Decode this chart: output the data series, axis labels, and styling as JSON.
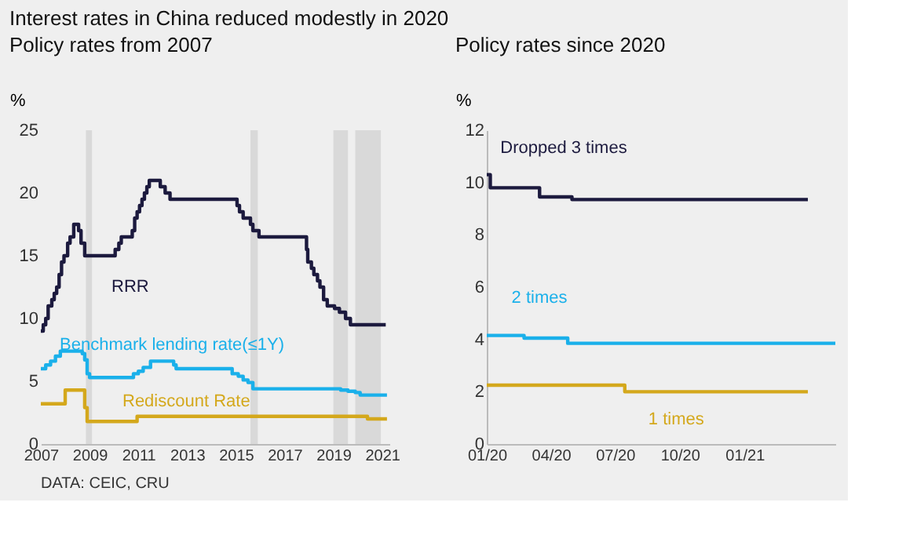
{
  "chart_data": [
    {
      "type": "step",
      "title": "Policy rates from 2007",
      "ylabel": "%",
      "annotations": [
        "Interest rates in China reduced modestly in 2020",
        "DATA: CEIC, CRU"
      ],
      "xlim": [
        2007,
        2021.3
      ],
      "xticks": [
        2007,
        2009,
        2011,
        2013,
        2015,
        2017,
        2019,
        2021
      ],
      "ylim": [
        0,
        25
      ],
      "yticks": [
        0,
        5,
        10,
        15,
        20,
        25
      ],
      "grid": false,
      "bands": [
        {
          "axis": "x",
          "from": 2008.85,
          "to": 2009.1,
          "color": "#d9d9d9"
        },
        {
          "axis": "x",
          "from": 2015.6,
          "to": 2015.9,
          "color": "#d9d9d9"
        },
        {
          "axis": "x",
          "from": 2019.0,
          "to": 2019.6,
          "color": "#d9d9d9"
        },
        {
          "axis": "x",
          "from": 2019.9,
          "to": 2020.95,
          "color": "#d9d9d9"
        }
      ],
      "series": [
        {
          "name": "RRR",
          "color": "#1c1a3e",
          "x": [
            2007.0,
            2007.1,
            2007.2,
            2007.3,
            2007.45,
            2007.55,
            2007.65,
            2007.75,
            2007.85,
            2007.95,
            2008.1,
            2008.2,
            2008.35,
            2008.55,
            2008.65,
            2008.8,
            2010.05,
            2010.2,
            2010.3,
            2010.75,
            2010.85,
            2010.95,
            2011.05,
            2011.15,
            2011.25,
            2011.35,
            2011.45,
            2011.9,
            2012.1,
            2012.3,
            2015.05,
            2015.15,
            2015.3,
            2015.6,
            2015.7,
            2015.95,
            2017.9,
            2017.95,
            2018.1,
            2018.2,
            2018.35,
            2018.45,
            2018.6,
            2018.75,
            2019.05,
            2019.25,
            2019.5,
            2019.7,
            2021.15
          ],
          "values": [
            9,
            9.5,
            10,
            11,
            11.5,
            12,
            12.5,
            13.5,
            14.5,
            15,
            16,
            16.5,
            17.5,
            17,
            16,
            15,
            15.5,
            16,
            16.5,
            17,
            18,
            18.5,
            19,
            19.5,
            20,
            20.5,
            21,
            20.5,
            20,
            19.5,
            19,
            18.5,
            18,
            17.5,
            17,
            16.5,
            15.5,
            14.5,
            14,
            13.5,
            13,
            12.5,
            11.5,
            11,
            10.8,
            10.5,
            10,
            9.5,
            9.5
          ]
        },
        {
          "name": "Benchmark lending rate(≤1Y)",
          "color": "#1ab0ea",
          "x": [
            2007.0,
            2007.2,
            2007.4,
            2007.6,
            2007.8,
            2008.7,
            2008.8,
            2008.9,
            2009.0,
            2010.8,
            2011.0,
            2011.2,
            2011.5,
            2012.45,
            2012.55,
            2014.85,
            2015.1,
            2015.3,
            2015.5,
            2015.7,
            2019.3,
            2019.6,
            2019.9,
            2020.1,
            2021.2
          ],
          "values": [
            6.0,
            6.3,
            6.6,
            7.0,
            7.4,
            7.2,
            6.7,
            5.6,
            5.3,
            5.6,
            5.8,
            6.1,
            6.6,
            6.3,
            6.0,
            5.6,
            5.4,
            5.1,
            4.9,
            4.4,
            4.3,
            4.2,
            4.1,
            3.9,
            3.9
          ]
        },
        {
          "name": "Rediscount Rate",
          "color": "#d4a81c",
          "x": [
            2007.0,
            2008.0,
            2008.8,
            2008.9,
            2010.95,
            2020.4,
            2021.2
          ],
          "values": [
            3.2,
            4.3,
            2.9,
            1.8,
            2.2,
            2.0,
            2.0
          ]
        }
      ]
    },
    {
      "type": "step",
      "title": "Policy rates since 2020",
      "ylabel": "%",
      "xlim": [
        "2020-01-01",
        "2021-05-10"
      ],
      "xticks": [
        {
          "value": "2020-01-01",
          "label": "01/20"
        },
        {
          "value": "2020-04-01",
          "label": "04/20"
        },
        {
          "value": "2020-07-01",
          "label": "07/20"
        },
        {
          "value": "2020-10-01",
          "label": "10/20"
        },
        {
          "value": "2021-01-01",
          "label": "01/21"
        }
      ],
      "ylim": [
        0,
        12
      ],
      "yticks": [
        0,
        2,
        4,
        6,
        8,
        10,
        12
      ],
      "grid": false,
      "annotations": [
        {
          "text": "Dropped 3 times",
          "x": "2020-03-16",
          "y": 9.75
        },
        {
          "text": "2 times",
          "x": "2020-02-23",
          "y": 4.15
        },
        {
          "text": "1 times",
          "x": "2020-07-15",
          "y": 2.25
        }
      ],
      "series": [
        {
          "color": "#1c1a3e",
          "x": [
            "2020-01-01",
            "2020-01-06",
            "2020-03-16",
            "2020-05-01",
            "2021-04-01"
          ],
          "values": [
            10.3,
            9.8,
            9.45,
            9.35,
            9.35
          ]
        },
        {
          "color": "#1ab0ea",
          "x": [
            "2020-01-01",
            "2020-02-23",
            "2020-04-25",
            "2021-05-10"
          ],
          "values": [
            4.15,
            4.05,
            3.85,
            3.85
          ]
        },
        {
          "color": "#d4a81c",
          "x": [
            "2020-01-01",
            "2020-07-15",
            "2021-04-01"
          ],
          "values": [
            2.25,
            2.0,
            2.0
          ]
        }
      ]
    }
  ]
}
